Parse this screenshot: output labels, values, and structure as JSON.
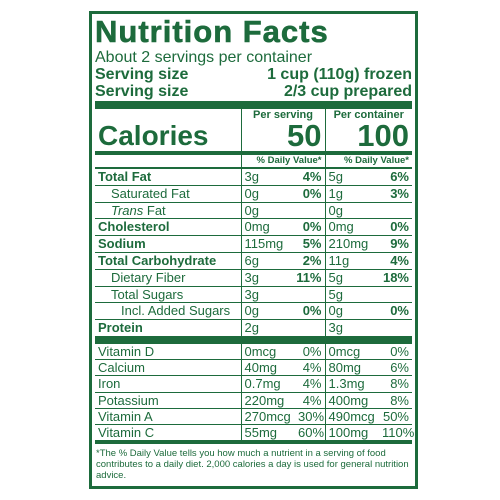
{
  "title": "Nutrition Facts",
  "servings": "About 2 servings per container",
  "serving_size": [
    {
      "label": "Serving size",
      "value": "1 cup (110g) frozen"
    },
    {
      "label": "Serving size",
      "value": "2/3 cup prepared"
    }
  ],
  "columns": [
    "Per serving",
    "Per container"
  ],
  "calories": {
    "label": "Calories",
    "values": [
      "50",
      "100"
    ]
  },
  "daily_value_header": [
    "% Daily Value*",
    "% Daily Value*"
  ],
  "nutrients": [
    {
      "name": "Total Fat",
      "per_serving": [
        "3g",
        "4%"
      ],
      "per_container": [
        "5g",
        "6%"
      ]
    },
    {
      "name": "Saturated Fat",
      "per_serving": [
        "0g",
        "0%"
      ],
      "per_container": [
        "1g",
        "3%"
      ]
    },
    {
      "name_italic": "Trans",
      "name": "Fat",
      "per_serving": [
        "0g"
      ],
      "per_container": [
        "0g"
      ]
    },
    {
      "name": "Cholesterol",
      "per_serving": [
        "0mg",
        "0%"
      ],
      "per_container": [
        "0mg",
        "0%"
      ]
    },
    {
      "name": "Sodium",
      "per_serving": [
        "115mg",
        "5%"
      ],
      "per_container": [
        "210mg",
        "9%"
      ]
    },
    {
      "name": "Total Carbohydrate",
      "per_serving": [
        "6g",
        "2%"
      ],
      "per_container": [
        "11g",
        "4%"
      ]
    },
    {
      "name": "Dietary Fiber",
      "per_serving": [
        "3g",
        "11%"
      ],
      "per_container": [
        "5g",
        "18%"
      ]
    },
    {
      "name": "Total Sugars",
      "per_serving": [
        "3g"
      ],
      "per_container": [
        "5g"
      ]
    },
    {
      "name": "Incl. Added Sugars",
      "per_serving": [
        "0g",
        "0%"
      ],
      "per_container": [
        "0g",
        "0%"
      ]
    },
    {
      "name": "Protein",
      "per_serving": [
        "2g"
      ],
      "per_container": [
        "3g"
      ]
    }
  ],
  "vitamins": [
    {
      "name": "Vitamin D",
      "per_serving": [
        "0mcg",
        "0%"
      ],
      "per_container": [
        "0mcg",
        "0%"
      ]
    },
    {
      "name": "Calcium",
      "per_serving": [
        "40mg",
        "4%"
      ],
      "per_container": [
        "80mg",
        "6%"
      ]
    },
    {
      "name": "Iron",
      "per_serving": [
        "0.7mg",
        "4%"
      ],
      "per_container": [
        "1.3mg",
        "8%"
      ]
    },
    {
      "name": "Potassium",
      "per_serving": [
        "220mg",
        "4%"
      ],
      "per_container": [
        "400mg",
        "8%"
      ]
    },
    {
      "name": "Vitamin A",
      "per_serving": [
        "270mcg",
        "30%"
      ],
      "per_container": [
        "490mcg",
        "50%"
      ]
    },
    {
      "name": "Vitamin C",
      "per_serving": [
        "55mg",
        "60%"
      ],
      "per_container": [
        "100mg",
        "110%"
      ]
    }
  ],
  "footnote": "*The % Daily Value tells you how much a nutrient in a serving of food contributes to a daily diet. 2,000 calories a day is used for general nutrition advice."
}
